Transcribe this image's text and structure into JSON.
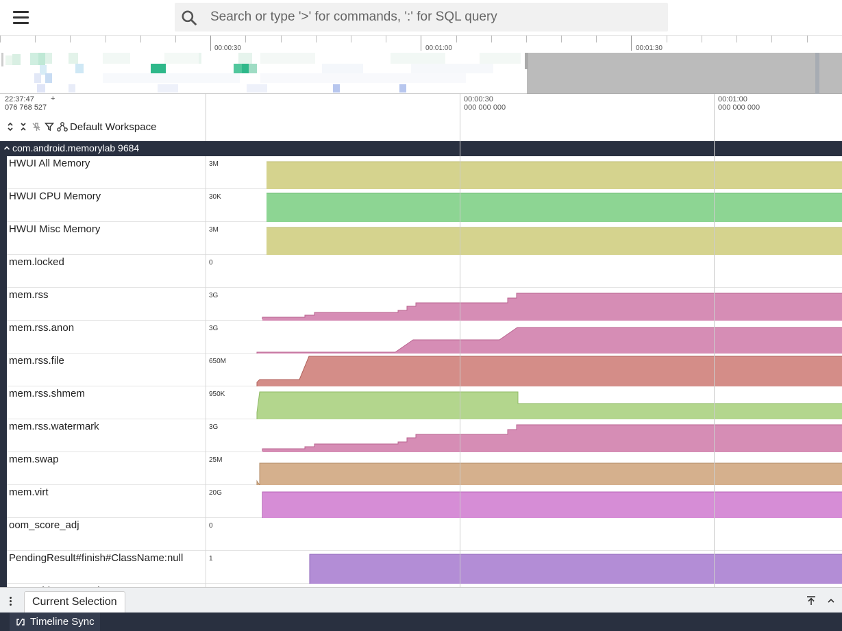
{
  "search": {
    "placeholder": "Search or type '>' for commands, ':' for SQL query"
  },
  "overview": {
    "ticks": [
      "00:00:30",
      "00:01:00",
      "00:01:30"
    ]
  },
  "time_header": {
    "origin_line1": "22:37:47",
    "origin_line2": "076 768 527",
    "plus": "+",
    "marks": [
      {
        "line1": "00:00:30",
        "line2": "000 000 000"
      },
      {
        "line1": "00:01:00",
        "line2": "000 000 000"
      }
    ]
  },
  "workspace": {
    "name": "Default Workspace"
  },
  "group": {
    "title": "com.android.memorylab 9684"
  },
  "tracks": [
    {
      "name": "HWUI All Memory",
      "scale": "3M",
      "color": "#d5d38e"
    },
    {
      "name": "HWUI CPU Memory",
      "scale": "30K",
      "color": "#8dd593"
    },
    {
      "name": "HWUI Misc Memory",
      "scale": "3M",
      "color": "#d5d38e"
    },
    {
      "name": "mem.locked",
      "scale": "0",
      "color": "#ffffff"
    },
    {
      "name": "mem.rss",
      "scale": "3G",
      "color": "#d68db5"
    },
    {
      "name": "mem.rss.anon",
      "scale": "3G",
      "color": "#d68db5"
    },
    {
      "name": "mem.rss.file",
      "scale": "650M",
      "color": "#d48d88"
    },
    {
      "name": "mem.rss.shmem",
      "scale": "950K",
      "color": "#b3d68d"
    },
    {
      "name": "mem.rss.watermark",
      "scale": "3G",
      "color": "#d68db5"
    },
    {
      "name": "mem.swap",
      "scale": "25M",
      "color": "#d5b08d"
    },
    {
      "name": "mem.virt",
      "scale": "20G",
      "color": "#d68dd6"
    },
    {
      "name": "oom_score_adj",
      "scale": "0",
      "color": "#ffffff"
    },
    {
      "name": "PendingResult#finish#ClassName:null",
      "scale": "1",
      "color": "#b38dd6"
    },
    {
      "name": "Purgeable HWUI Misc Memory",
      "scale": "",
      "color": "#b3d68d"
    }
  ],
  "bottom": {
    "tab_label": "Current Selection"
  },
  "status": {
    "sync_label": "Timeline Sync"
  }
}
